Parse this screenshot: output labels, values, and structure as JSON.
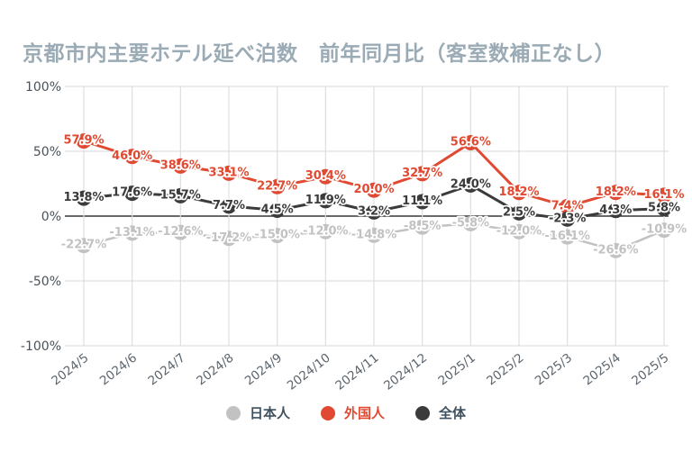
{
  "chart_data": {
    "type": "line",
    "title": "京都市内主要ホテル延べ泊数　前年同月比（客室数補正なし）",
    "categories": [
      "2024/5",
      "2024/6",
      "2024/7",
      "2024/8",
      "2024/9",
      "2024/10",
      "2024/11",
      "2024/12",
      "2025/1",
      "2025/2",
      "2025/3",
      "2025/4",
      "2025/5"
    ],
    "series": [
      {
        "name": "日本人",
        "color": "#c2c2c2",
        "legend_text_color": "#3e5160",
        "values": [
          -22.7,
          -13.1,
          -12.6,
          -17.2,
          -15.0,
          -12.0,
          -14.8,
          -8.5,
          -5.8,
          -12.0,
          -16.1,
          -26.6,
          -10.9
        ]
      },
      {
        "name": "外国人",
        "color": "#e04a32",
        "legend_text_color": "#e04a32",
        "values": [
          57.9,
          46.0,
          38.6,
          33.1,
          22.7,
          30.4,
          20.0,
          32.7,
          56.6,
          18.2,
          7.4,
          18.2,
          16.1
        ]
      },
      {
        "name": "全体",
        "color": "#3b3b3b",
        "legend_text_color": "#3e5160",
        "values": [
          13.8,
          17.6,
          15.7,
          7.7,
          4.5,
          11.9,
          3.2,
          11.1,
          24.0,
          2.5,
          -2.3,
          4.3,
          5.8
        ]
      }
    ],
    "yticks": [
      100,
      50,
      0,
      -50,
      -100
    ],
    "ytick_suffix": "%",
    "value_suffix": "%",
    "ylim": [
      -100,
      100
    ],
    "grid": true,
    "legend_position": "bottom",
    "colors": {
      "title": "#9babb5",
      "axis_label": "#49525a",
      "grid": "#dcdfe2",
      "zero_line": "#33383d",
      "background": "#ffffff"
    }
  }
}
